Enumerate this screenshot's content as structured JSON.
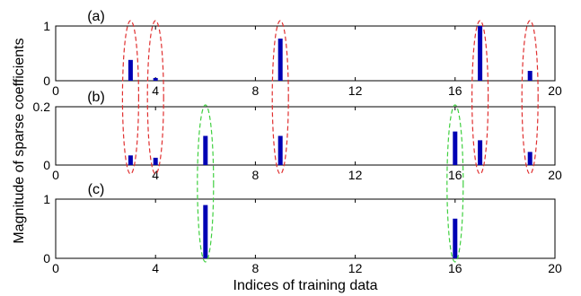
{
  "chart_data": {
    "type": "bar",
    "xlabel": "Indices of training data",
    "ylabel": "Magnitude of sparse coefficients",
    "xlim": [
      0,
      20
    ],
    "xticks": [
      "0",
      "4",
      "8",
      "12",
      "16",
      "20"
    ],
    "bar_color": "#0000b4",
    "panels": [
      {
        "label": "(a)",
        "ylim": [
          0,
          1
        ],
        "yticks": [
          "0",
          "1"
        ],
        "bars": [
          {
            "x": 3,
            "y": 0.38
          },
          {
            "x": 4,
            "y": 0.05
          },
          {
            "x": 9,
            "y": 0.77
          },
          {
            "x": 17,
            "y": 1.0
          },
          {
            "x": 19,
            "y": 0.18
          }
        ]
      },
      {
        "label": "(b)",
        "ylim": [
          0,
          0.2
        ],
        "yticks": [
          "0",
          "0.2"
        ],
        "bars": [
          {
            "x": 3,
            "y": 0.033
          },
          {
            "x": 4,
            "y": 0.025
          },
          {
            "x": 6,
            "y": 0.1
          },
          {
            "x": 9,
            "y": 0.1
          },
          {
            "x": 16,
            "y": 0.115
          },
          {
            "x": 17,
            "y": 0.085
          },
          {
            "x": 19,
            "y": 0.045
          }
        ]
      },
      {
        "label": "(c)",
        "ylim": [
          0,
          1
        ],
        "yticks": [
          "0",
          "1"
        ],
        "bars": [
          {
            "x": 6,
            "y": 0.9
          },
          {
            "x": 16,
            "y": 0.67
          }
        ]
      }
    ],
    "annotations": [
      {
        "type": "dashed-ellipse",
        "color": "#e03030",
        "x": 3,
        "y": 0.5,
        "panels": "a-b"
      },
      {
        "type": "dashed-ellipse",
        "color": "#e03030",
        "x": 4,
        "y": 0.5,
        "panels": "a-b"
      },
      {
        "type": "dashed-ellipse",
        "color": "#e03030",
        "x": 9,
        "y": 0.5,
        "panels": "a-b"
      },
      {
        "type": "dashed-ellipse",
        "color": "#e03030",
        "x": 17,
        "y": 0.5,
        "panels": "a-b"
      },
      {
        "type": "dashed-ellipse",
        "color": "#e03030",
        "x": 19,
        "y": 0.5,
        "panels": "a-b"
      },
      {
        "type": "dashed-ellipse",
        "color": "#40d040",
        "x": 6,
        "y": 0.5,
        "panels": "b-c"
      },
      {
        "type": "dashed-ellipse",
        "color": "#40d040",
        "x": 16,
        "y": 0.5,
        "panels": "b-c"
      }
    ]
  }
}
